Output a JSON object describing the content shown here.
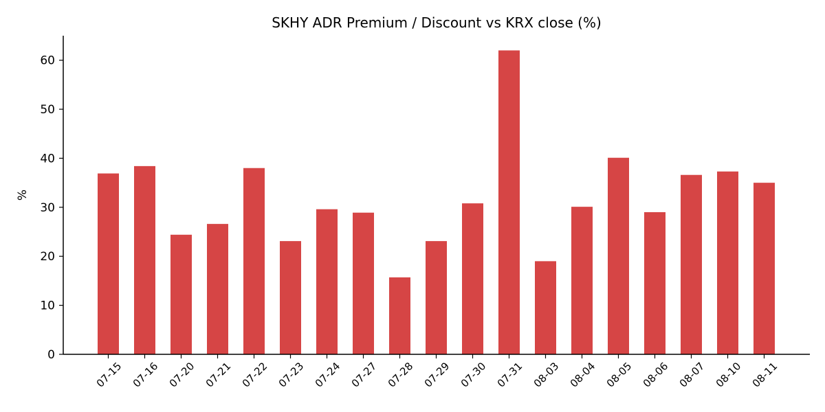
{
  "chart_data": {
    "type": "bar",
    "title": "SKHY ADR Premium / Discount vs KRX close (%)",
    "xlabel": "",
    "ylabel": "%",
    "ylim": [
      0,
      65
    ],
    "yticks": [
      0,
      10,
      20,
      30,
      40,
      50,
      60
    ],
    "grid": false,
    "bar_color": "#d64545",
    "categories": [
      "07-15",
      "07-16",
      "07-20",
      "07-21",
      "07-22",
      "07-23",
      "07-24",
      "07-27",
      "07-28",
      "07-29",
      "07-30",
      "07-31",
      "08-03",
      "08-04",
      "08-05",
      "08-06",
      "08-07",
      "08-10",
      "08-11"
    ],
    "values": [
      36.9,
      38.4,
      24.4,
      26.6,
      38.0,
      23.1,
      29.6,
      28.9,
      15.7,
      23.1,
      30.8,
      62.0,
      19.0,
      30.1,
      40.1,
      29.0,
      36.6,
      37.3,
      35.0
    ]
  }
}
